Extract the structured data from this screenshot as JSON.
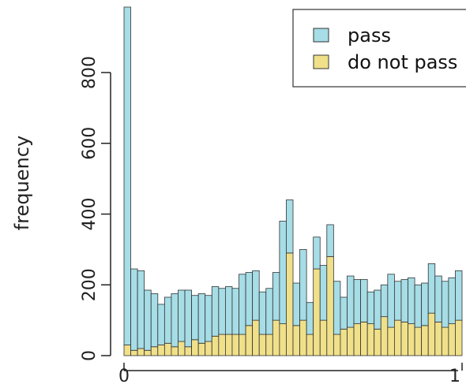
{
  "chart_data": {
    "type": "bar",
    "stacked": true,
    "title": "",
    "xlabel": "",
    "ylabel": "frequency",
    "x_range": [
      0,
      1
    ],
    "bin_count": 50,
    "ylim": [
      0,
      980
    ],
    "y_ticks": [
      "0",
      "200",
      "400",
      "600",
      "800"
    ],
    "x_ticks": [
      "0",
      "1"
    ],
    "grid": false,
    "legend_position": "top-right",
    "series": [
      {
        "name": "pass",
        "color": "#a6dde6",
        "values": [
          955,
          230,
          220,
          170,
          150,
          115,
          130,
          150,
          145,
          160,
          125,
          140,
          130,
          140,
          130,
          135,
          130,
          170,
          150,
          140,
          120,
          130,
          135,
          290,
          150,
          120,
          200,
          90,
          90,
          155,
          90,
          150,
          90,
          145,
          125,
          120,
          90,
          110,
          90,
          150,
          110,
          120,
          130,
          120,
          120,
          140,
          130,
          130,
          130,
          140
        ]
      },
      {
        "name": "do not pass",
        "color": "#f0e08a",
        "values": [
          30,
          15,
          20,
          15,
          25,
          30,
          35,
          25,
          40,
          25,
          45,
          35,
          40,
          55,
          60,
          60,
          60,
          60,
          85,
          100,
          60,
          60,
          100,
          90,
          290,
          85,
          100,
          60,
          245,
          100,
          280,
          60,
          75,
          80,
          90,
          95,
          90,
          75,
          110,
          80,
          100,
          95,
          90,
          80,
          85,
          120,
          95,
          80,
          90,
          100
        ]
      }
    ]
  }
}
